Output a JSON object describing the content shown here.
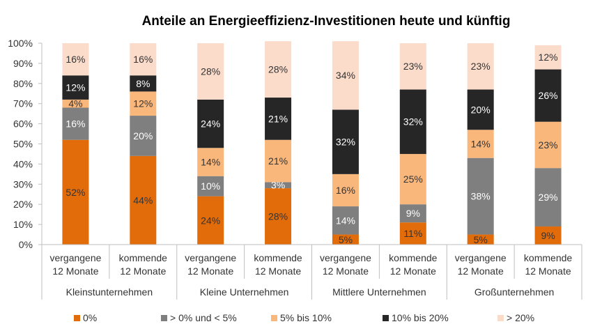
{
  "chart_data": {
    "type": "bar",
    "stacked": true,
    "title": "Anteile an Energieeffizienz-Investitionen heute und künftig",
    "ylim": [
      0,
      100
    ],
    "yticks": [
      "0%",
      "10%",
      "20%",
      "30%",
      "40%",
      "50%",
      "60%",
      "70%",
      "80%",
      "90%",
      "100%"
    ],
    "groups": [
      "Kleinstunternehmen",
      "Kleine Unternehmen",
      "Mittlere Unternehmen",
      "Großunternehmen"
    ],
    "categories": [
      [
        "vergangene",
        "12 Monate"
      ],
      [
        "kommende",
        "12 Monate"
      ],
      [
        "vergangene",
        "12 Monate"
      ],
      [
        "kommende",
        "12 Monate"
      ],
      [
        "vergangene",
        "12 Monate"
      ],
      [
        "kommende",
        "12 Monate"
      ],
      [
        "vergangene",
        "12 Monate"
      ],
      [
        "kommende",
        "12 Monate"
      ]
    ],
    "series": [
      {
        "name": "0%",
        "color": "#E36C0A",
        "label_color": "#333333",
        "values": [
          52,
          44,
          24,
          28,
          5,
          11,
          5,
          9
        ],
        "labels": [
          "52%",
          "44%",
          "24%",
          "28%",
          "5%",
          "11%",
          "5%",
          "9%"
        ]
      },
      {
        "name": "> 0% und < 5%",
        "color": "#7F7F7F",
        "label_color": "#ffffff",
        "values": [
          16,
          20,
          10,
          3,
          14,
          9,
          38,
          29
        ],
        "labels": [
          "16%",
          "20%",
          "10%",
          "3%",
          "14%",
          "9%",
          "38%",
          "29%"
        ]
      },
      {
        "name": "5% bis 10%",
        "color": "#FAB77B",
        "label_color": "#333333",
        "values": [
          4,
          12,
          14,
          21,
          16,
          25,
          14,
          23
        ],
        "labels": [
          "4%",
          "12%",
          "14%",
          "21%",
          "16%",
          "25%",
          "14%",
          "23%"
        ]
      },
      {
        "name": "10% bis 20%",
        "color": "#262626",
        "label_color": "#ffffff",
        "values": [
          12,
          8,
          24,
          21,
          32,
          32,
          20,
          26
        ],
        "labels": [
          "12%",
          "8%",
          "24%",
          "21%",
          "32%",
          "32%",
          "20%",
          "26%"
        ]
      },
      {
        "name": "> 20%",
        "color": "#FBDCCB",
        "label_color": "#333333",
        "values": [
          16,
          16,
          28,
          28,
          34,
          23,
          23,
          12
        ],
        "labels": [
          "16%",
          "16%",
          "28%",
          "28%",
          "34%",
          "23%",
          "23%",
          "12%"
        ]
      }
    ],
    "grid": false,
    "legend_position": "bottom"
  }
}
